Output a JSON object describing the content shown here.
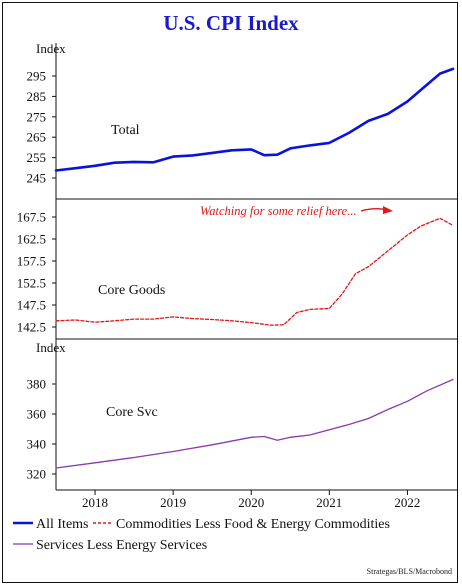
{
  "chart_data": {
    "type": "line",
    "title": "U.S. CPI Index",
    "x_ticks": [
      "2018",
      "2019",
      "2020",
      "2021",
      "2022"
    ],
    "x_range": [
      "2017-07",
      "2022-08"
    ],
    "source": "Strategas/BLS/Macrobond",
    "annotation": "Watching for some relief here...",
    "legend": {
      "position": "bottom",
      "entries": [
        "All Items",
        "Commodities Less Food & Energy Commodities",
        "Services Less Energy Services"
      ]
    },
    "colors": {
      "total": "#0a14d8",
      "goods": "#e01818",
      "svc": "#8a3aa6",
      "title": "#1a1acc"
    },
    "panels": [
      {
        "id": "total",
        "ylabel": "Index",
        "label": "Total",
        "ylim": [
          243,
          303
        ],
        "yticks": [
          "295",
          "285",
          "275",
          "265",
          "255",
          "245"
        ],
        "series": {
          "name": "All Items",
          "style": "solid",
          "x": [
            "2017-07",
            "2017-10",
            "2018-01",
            "2018-04",
            "2018-07",
            "2018-10",
            "2019-01",
            "2019-04",
            "2019-07",
            "2019-10",
            "2020-01",
            "2020-03",
            "2020-05",
            "2020-07",
            "2020-10",
            "2021-01",
            "2021-04",
            "2021-07",
            "2021-10",
            "2022-01",
            "2022-03",
            "2022-06",
            "2022-08"
          ],
          "y": [
            248.7,
            249.8,
            251.0,
            252.5,
            252.9,
            252.7,
            255.5,
            256.1,
            257.3,
            258.6,
            259.0,
            256.2,
            256.4,
            259.5,
            261.0,
            262.2,
            267.1,
            273.0,
            276.4,
            282.5,
            288.0,
            296.2,
            298.5
          ]
        }
      },
      {
        "id": "goods",
        "ylabel": "",
        "label": "Core Goods",
        "ylim": [
          141.5,
          169
        ],
        "yticks": [
          "167.5",
          "162.5",
          "157.5",
          "152.5",
          "147.5",
          "142.5"
        ],
        "series": {
          "name": "Commodities Less Food & Energy Commodities",
          "style": "dashed",
          "x": [
            "2017-07",
            "2017-10",
            "2018-01",
            "2018-04",
            "2018-07",
            "2018-10",
            "2019-01",
            "2019-04",
            "2019-07",
            "2019-10",
            "2020-01",
            "2020-04",
            "2020-06",
            "2020-08",
            "2020-10",
            "2021-01",
            "2021-03",
            "2021-05",
            "2021-07",
            "2021-10",
            "2022-01",
            "2022-03",
            "2022-06",
            "2022-08"
          ],
          "y": [
            143.9,
            144.1,
            143.6,
            143.9,
            144.3,
            144.3,
            144.8,
            144.4,
            144.2,
            143.9,
            143.5,
            142.9,
            143.0,
            145.8,
            146.5,
            146.7,
            150.1,
            154.6,
            156.2,
            159.8,
            163.4,
            165.4,
            167.2,
            165.6
          ]
        }
      },
      {
        "id": "svc",
        "ylabel": "Index",
        "label": "Core Svc",
        "ylim": [
          315,
          395
        ],
        "yticks": [
          "380",
          "360",
          "340",
          "320"
        ],
        "series": {
          "name": "Services Less Energy Services",
          "style": "solid",
          "x": [
            "2017-07",
            "2018-01",
            "2018-07",
            "2019-01",
            "2019-07",
            "2020-01",
            "2020-03",
            "2020-05",
            "2020-07",
            "2020-10",
            "2021-01",
            "2021-04",
            "2021-07",
            "2021-10",
            "2022-01",
            "2022-04",
            "2022-08"
          ],
          "y": [
            324.0,
            327.5,
            331.0,
            335.0,
            339.5,
            344.5,
            345.0,
            342.5,
            344.5,
            346.0,
            349.5,
            353.0,
            357.0,
            363.0,
            368.5,
            375.5,
            383.0
          ]
        }
      }
    ]
  }
}
